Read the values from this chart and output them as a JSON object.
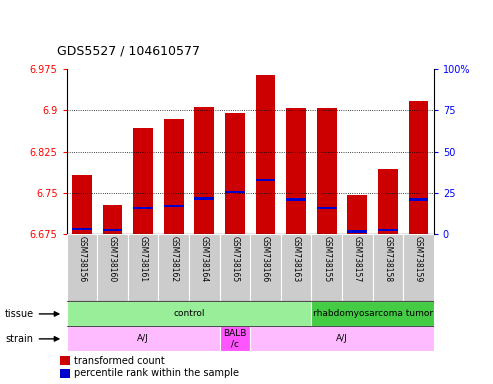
{
  "title": "GDS5527 / 104610577",
  "samples": [
    "GSM738156",
    "GSM738160",
    "GSM738161",
    "GSM738162",
    "GSM738164",
    "GSM738165",
    "GSM738166",
    "GSM738163",
    "GSM738155",
    "GSM738157",
    "GSM738158",
    "GSM738159"
  ],
  "bar_tops": [
    6.783,
    6.728,
    6.868,
    6.885,
    6.907,
    6.895,
    6.965,
    6.905,
    6.905,
    6.747,
    6.793,
    6.917
  ],
  "percentile_positions": [
    6.685,
    6.682,
    6.722,
    6.727,
    6.74,
    6.752,
    6.773,
    6.738,
    6.722,
    6.68,
    6.682,
    6.738
  ],
  "bar_base": 6.675,
  "y_min": 6.675,
  "y_max": 6.975,
  "y_ticks": [
    6.675,
    6.75,
    6.825,
    6.9,
    6.975
  ],
  "y_tick_labels": [
    "6.675",
    "6.75",
    "6.825",
    "6.9",
    "6.975"
  ],
  "right_y_ticks": [
    0,
    25,
    50,
    75,
    100
  ],
  "right_y_tick_labels": [
    "0",
    "25",
    "50",
    "75",
    "100%"
  ],
  "bar_color": "#cc0000",
  "percentile_color": "#0000cc",
  "tissue_groups": [
    {
      "label": "control",
      "start": 0,
      "end": 8,
      "color": "#99ee99"
    },
    {
      "label": "rhabdomyosarcoma tumor",
      "start": 8,
      "end": 12,
      "color": "#44cc44"
    }
  ],
  "strain_groups": [
    {
      "label": "A/J",
      "start": 0,
      "end": 5,
      "color": "#ffbbff"
    },
    {
      "label": "BALB\n/c",
      "start": 5,
      "end": 6,
      "color": "#ff55ff"
    },
    {
      "label": "A/J",
      "start": 6,
      "end": 12,
      "color": "#ffbbff"
    }
  ],
  "legend_red_label": "transformed count",
  "legend_blue_label": "percentile rank within the sample",
  "bar_width": 0.65,
  "percentile_thickness": 0.004,
  "label_row_color": "#cccccc",
  "label_row_separator": "#ffffff"
}
